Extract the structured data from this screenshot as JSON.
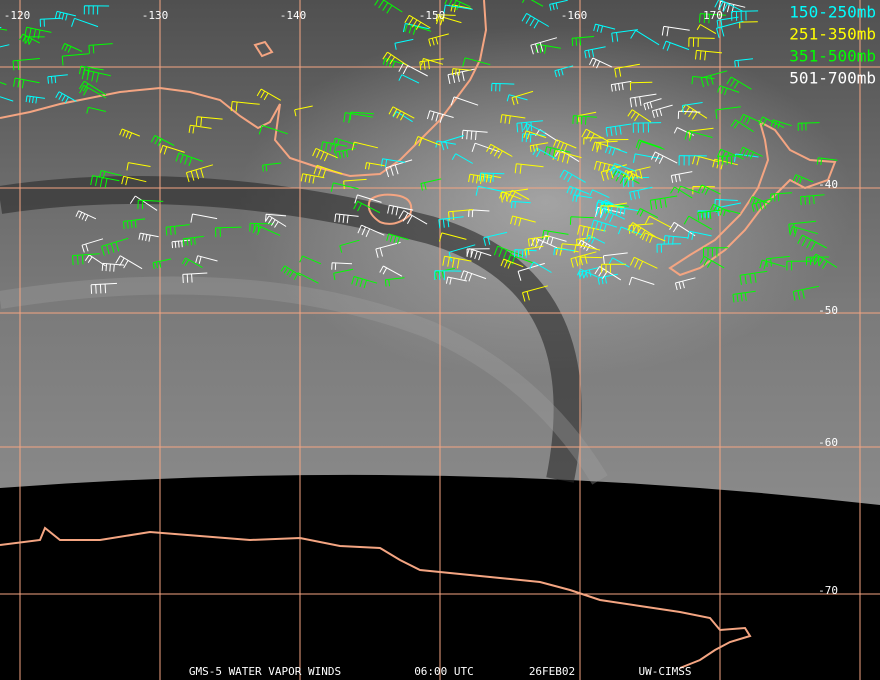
{
  "map": {
    "longitude_labels": [
      "-120",
      "-130",
      "-140",
      "-150",
      "-160",
      "170"
    ],
    "latitude_labels": [
      "-40",
      "-50",
      "-60",
      "-70"
    ],
    "legend": [
      {
        "label": "150-250mb",
        "color": "#00ffff"
      },
      {
        "label": "251-350mb",
        "color": "#ffff00"
      },
      {
        "label": "351-500mb",
        "color": "#00ff00"
      },
      {
        "label": "501-700mb",
        "color": "#ffffff"
      }
    ],
    "footer": [
      "GMS-5 WATER VAPOR WINDS",
      "06:00 UTC",
      "26FEB02",
      "UW-CIMSS"
    ]
  }
}
